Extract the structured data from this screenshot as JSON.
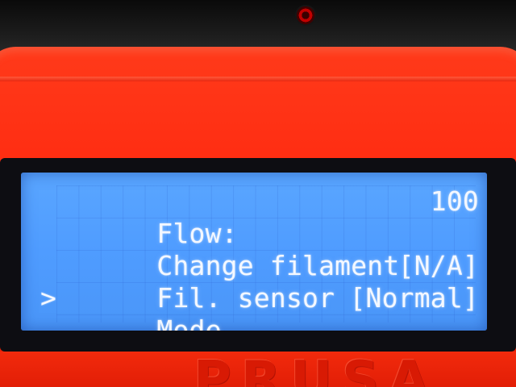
{
  "lcd": {
    "rows": [
      {
        "label": "Flow:",
        "value": "100"
      },
      {
        "label": "Change filament",
        "value": ""
      },
      {
        "label": "Fil. sensor",
        "value": "[N/A]"
      },
      {
        "label": "Mode",
        "value": "[Normal]"
      }
    ],
    "cursor": ">",
    "backlight_color": "#4f9cff",
    "text_color": "#f4f8ff"
  },
  "bezel": {
    "color": "#ff2a10",
    "brand_text": "PRUSA"
  }
}
